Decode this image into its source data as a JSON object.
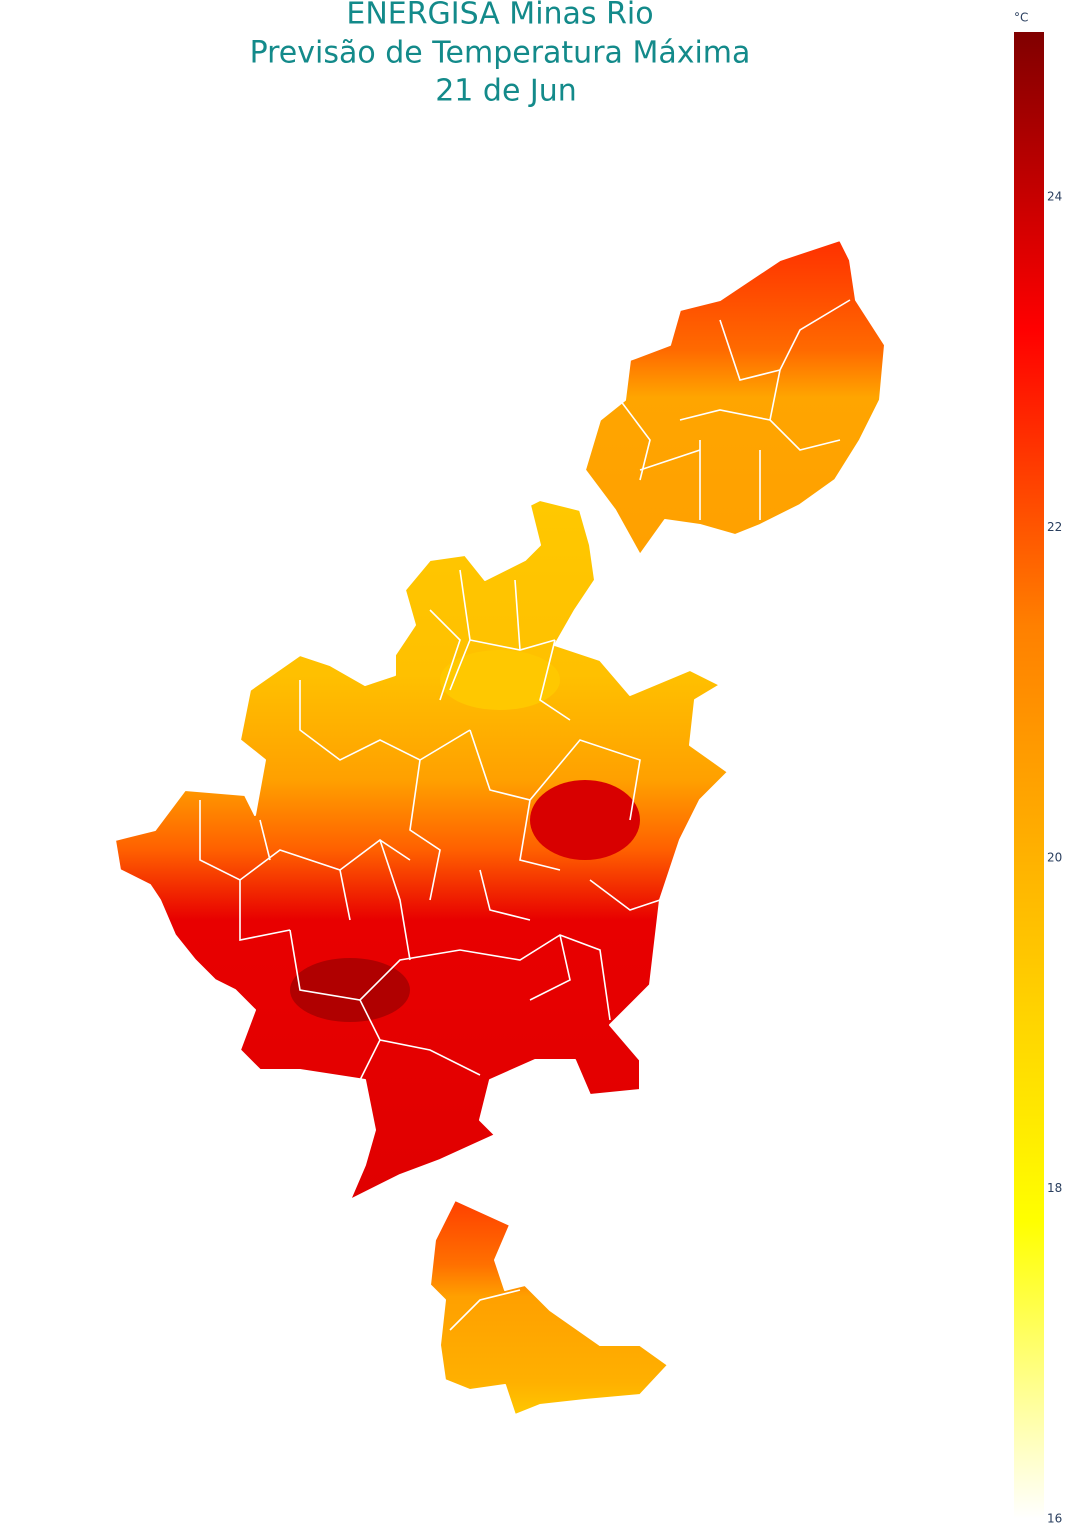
{
  "title": [
    "ENERGISA Minas Rio",
    "Previsão de Temperatura Máxima",
    "21 de Jun"
  ],
  "colorbar": {
    "title": "°C",
    "range": [
      16,
      25
    ],
    "ticks": [
      16,
      18,
      20,
      22,
      24
    ],
    "colors": [
      "#ffffff",
      "#ffff00",
      "#ffc000",
      "#ff8000",
      "#ff0000",
      "#800000"
    ]
  }
}
